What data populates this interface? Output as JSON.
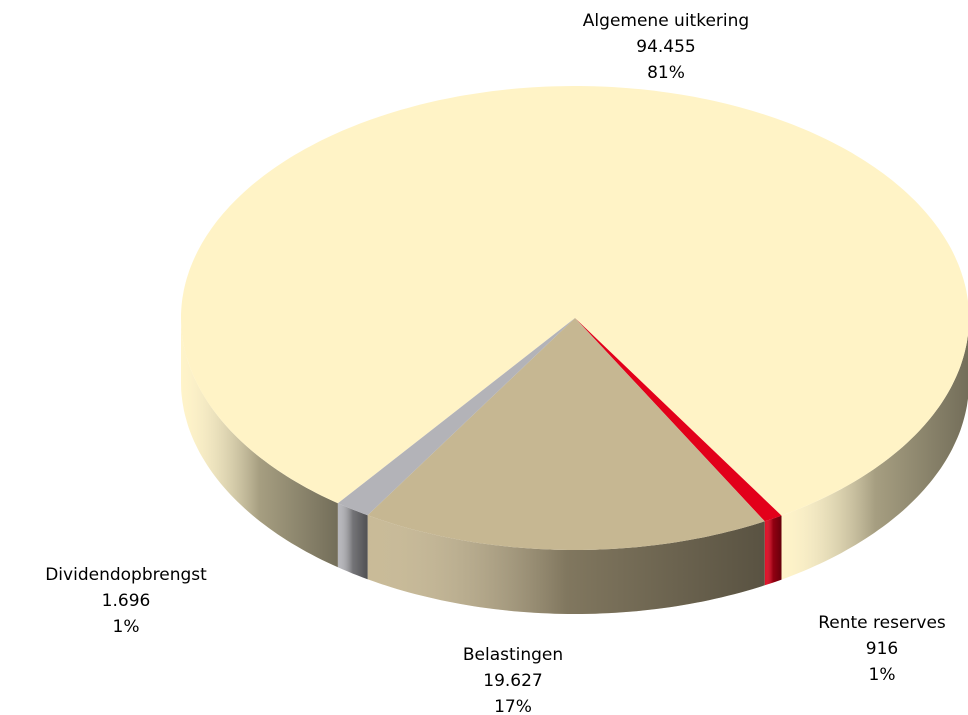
{
  "chart_data": {
    "type": "pie3d",
    "categories": [
      "Algemene uitkering",
      "Rente reserves",
      "Belastingen",
      "Dividendopbrengst"
    ],
    "values": [
      94455,
      916,
      19627,
      1696
    ],
    "value_labels": [
      "94.455",
      "916",
      "19.627",
      "1.696"
    ],
    "percent_labels": [
      "81%",
      "1%",
      "17%",
      "1%"
    ],
    "colors": [
      "#fff3c6",
      "#e2001a",
      "#c6b792",
      "#b3b3b8"
    ]
  }
}
